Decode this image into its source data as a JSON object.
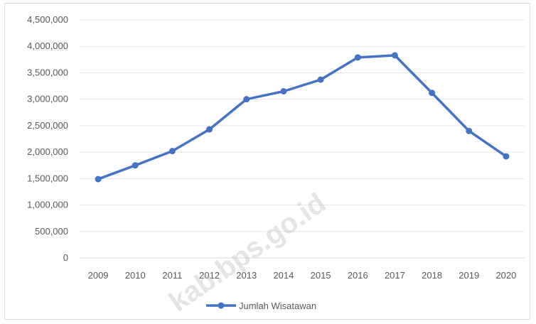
{
  "chart_data": {
    "type": "line",
    "categories": [
      "2009",
      "2010",
      "2011",
      "2012",
      "2013",
      "2014",
      "2015",
      "2016",
      "2017",
      "2018",
      "2019",
      "2020"
    ],
    "series": [
      {
        "name": "Jumlah Wisatawan",
        "color": "#4472c4",
        "values": [
          1490000,
          1750000,
          2020000,
          2430000,
          3000000,
          3150000,
          3370000,
          3790000,
          3830000,
          3120000,
          2400000,
          1920000
        ]
      }
    ],
    "ylim": [
      0,
      4500000
    ],
    "yticks": [
      "0",
      "500,000",
      "1,000,000",
      "1,500,000",
      "2,000,000",
      "2,500,000",
      "3,000,000",
      "3,500,000",
      "4,000,000",
      "4,500,000"
    ],
    "grid": true,
    "legend_position": "bottom"
  },
  "watermark": "kab.bps.go.id"
}
